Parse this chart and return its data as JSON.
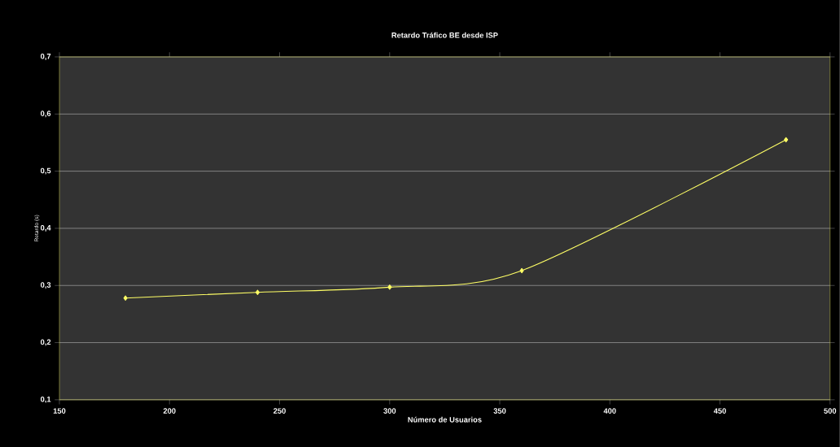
{
  "chart_data": {
    "type": "line",
    "title": "Retardo Tráfico BE desde ISP",
    "xlabel": "Número de Usuarios",
    "ylabel": "Retardo (s)",
    "x": [
      180,
      240,
      300,
      360,
      480
    ],
    "series": [
      {
        "color": "#ffff66",
        "values": [
          0.278,
          0.288,
          0.297,
          0.326,
          0.555
        ]
      }
    ],
    "xlim": [
      150,
      500
    ],
    "xticks": [
      150,
      200,
      250,
      300,
      350,
      400,
      450,
      500
    ],
    "ylim": [
      0.1,
      0.7
    ],
    "yticks": [
      {
        "value": 0.1,
        "label": "0,1"
      },
      {
        "value": 0.2,
        "label": "0,2"
      },
      {
        "value": 0.3,
        "label": "0,3"
      },
      {
        "value": 0.4,
        "label": "0,4"
      },
      {
        "value": 0.5,
        "label": "0,5"
      },
      {
        "value": 0.6,
        "label": "0,6"
      },
      {
        "value": 0.7,
        "label": "0,7"
      }
    ],
    "grid": "y",
    "marker": "diamond",
    "line_style": "solid"
  }
}
